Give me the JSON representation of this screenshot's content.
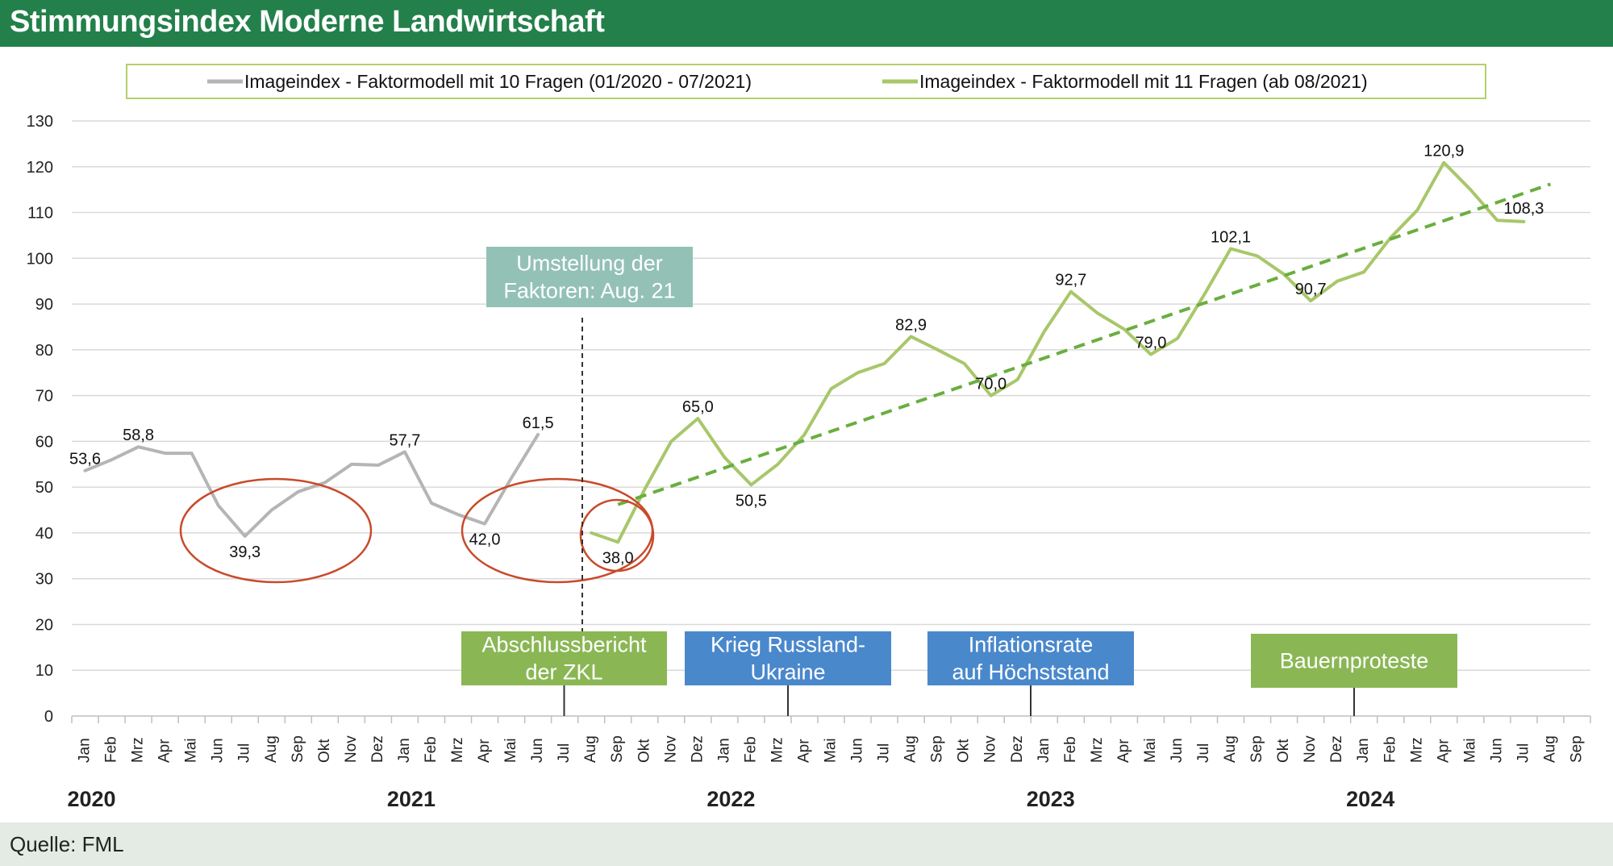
{
  "title": "Stimmungsindex Moderne Landwirtschaft",
  "source": "Quelle: FML",
  "colors": {
    "header_bg": "#23804a",
    "footer_bg": "#e3ebe4",
    "series_old": "#b5b5b5",
    "series_new": "#a8c76a",
    "trend": "#6aae3f",
    "ellipse": "#c84a2a",
    "legend_border": "#b6cf6b",
    "box_green": "#8ab754",
    "box_blue": "#4a88cc",
    "box_teal": "#93c1b6"
  },
  "chart_data": {
    "type": "line",
    "ylim": [
      0,
      130
    ],
    "yticks": [
      0,
      10,
      20,
      30,
      40,
      50,
      60,
      70,
      80,
      90,
      100,
      110,
      120,
      130
    ],
    "grid": true,
    "legend_position": "top",
    "months": [
      "Jan",
      "Feb",
      "Mrz",
      "Apr",
      "Mai",
      "Jun",
      "Jul",
      "Aug",
      "Sep",
      "Okt",
      "Nov",
      "Dez",
      "Jan",
      "Feb",
      "Mrz",
      "Apr",
      "Mai",
      "Jun",
      "Jul",
      "Aug",
      "Sep",
      "Okt",
      "Nov",
      "Dez",
      "Jan",
      "Feb",
      "Mrz",
      "Apr",
      "Mai",
      "Jun",
      "Jul",
      "Aug",
      "Sep",
      "Okt",
      "Nov",
      "Dez",
      "Jan",
      "Feb",
      "Mrz",
      "Apr",
      "Mai",
      "Jun",
      "Jul",
      "Aug",
      "Sep",
      "Okt",
      "Nov",
      "Dez",
      "Jan",
      "Feb",
      "Mrz",
      "Apr",
      "Mai",
      "Jun",
      "Jul",
      "Aug",
      "Sep"
    ],
    "years": [
      {
        "label": "2020",
        "center_index": 0
      },
      {
        "label": "2021",
        "center_index": 12
      },
      {
        "label": "2022",
        "center_index": 24
      },
      {
        "label": "2023",
        "center_index": 36
      },
      {
        "label": "2024",
        "center_index": 48
      }
    ],
    "series": [
      {
        "name": "Imageindex - Faktormodell mit 10 Fragen (01/2020 - 07/2021)",
        "start_index": 0,
        "values": [
          53.6,
          56.0,
          58.8,
          57.4,
          57.4,
          46.0,
          39.3,
          45.0,
          49.0,
          51.0,
          55.0,
          54.8,
          57.7,
          46.5,
          44.0,
          42.0,
          52.0,
          61.5
        ]
      },
      {
        "name": "Imageindex - Faktormodell mit 11 Fragen (ab 08/2021)",
        "start_index": 19,
        "values": [
          40.0,
          38.0,
          49.5,
          60.0,
          65.0,
          56.5,
          50.5,
          55.0,
          61.5,
          71.5,
          75.0,
          77.0,
          82.9,
          80.0,
          77.0,
          70.0,
          73.5,
          84.0,
          92.7,
          88.0,
          84.5,
          79.0,
          82.5,
          92.0,
          102.1,
          100.5,
          96.5,
          90.7,
          95.0,
          97.0,
          104.5,
          110.5,
          120.9,
          115.0,
          108.3,
          108.0
        ]
      }
    ],
    "trend": {
      "start_index": 20,
      "end_index": 55,
      "start_value": 46.2,
      "end_value": 116.2
    },
    "data_labels": [
      {
        "index": 0,
        "value": 53.6,
        "text": "53,6"
      },
      {
        "index": 2,
        "value": 58.8,
        "text": "58,8"
      },
      {
        "index": 6,
        "value": 39.3,
        "text": "39,3"
      },
      {
        "index": 12,
        "value": 57.7,
        "text": "57,7"
      },
      {
        "index": 15,
        "value": 42.0,
        "text": "42,0"
      },
      {
        "index": 17,
        "value": 61.5,
        "text": "61,5"
      },
      {
        "index": 20,
        "value": 38.0,
        "text": "38,0"
      },
      {
        "index": 23,
        "value": 65.0,
        "text": "65,0"
      },
      {
        "index": 25,
        "value": 50.5,
        "text": "50,5"
      },
      {
        "index": 31,
        "value": 82.9,
        "text": "82,9"
      },
      {
        "index": 34,
        "value": 70.0,
        "text": "70,0"
      },
      {
        "index": 37,
        "value": 92.7,
        "text": "92,7"
      },
      {
        "index": 40,
        "value": 79.0,
        "text": "79,0"
      },
      {
        "index": 43,
        "value": 102.1,
        "text": "102,1"
      },
      {
        "index": 46,
        "value": 90.7,
        "text": "90,7"
      },
      {
        "index": 51,
        "value": 120.9,
        "text": "120,9"
      },
      {
        "index": 54,
        "value": 108.3,
        "text": "108,3"
      }
    ],
    "annotations": [
      {
        "id": "umstellung",
        "lines": [
          "Umstellung der",
          "Faktoren: Aug. 21"
        ],
        "color": "teal"
      },
      {
        "id": "zkl",
        "lines": [
          "Abschlussbericht",
          "der ZKL"
        ],
        "color": "green",
        "marker_index": 18
      },
      {
        "id": "krieg",
        "lines": [
          "Krieg Russland-",
          "Ukraine"
        ],
        "color": "blue",
        "marker_index": 25
      },
      {
        "id": "inflation",
        "lines": [
          "Inflationsrate",
          "auf Höchststand"
        ],
        "color": "blue",
        "marker_index": 34
      },
      {
        "id": "bauern",
        "lines": [
          "Bauernproteste"
        ],
        "color": "green",
        "marker_index": 46
      }
    ],
    "highlight_ellipses": [
      {
        "center_index": 7,
        "center_value": 40
      },
      {
        "center_index": 17,
        "center_value": 40
      },
      {
        "center_index": 20,
        "center_value": 40
      }
    ]
  }
}
